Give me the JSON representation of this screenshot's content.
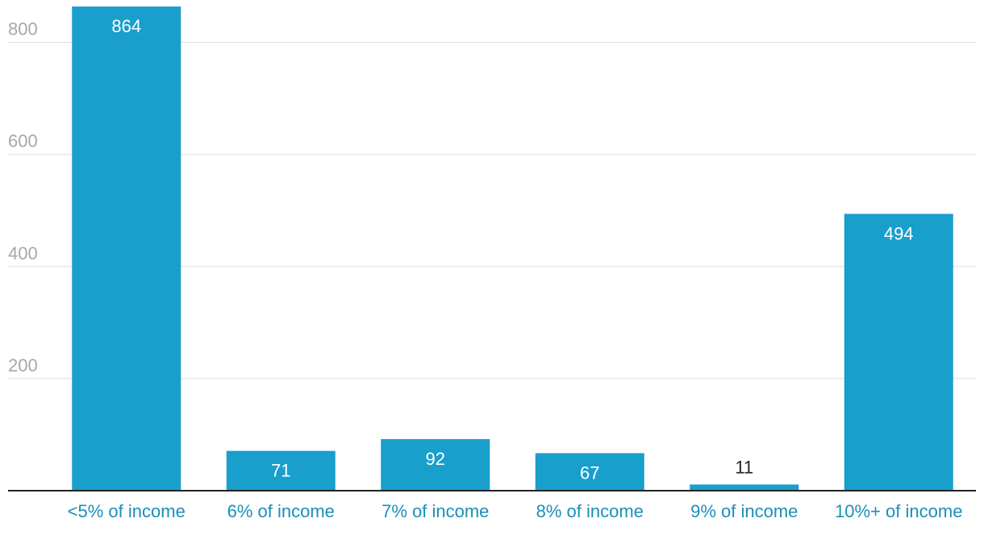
{
  "chart_data": {
    "type": "bar",
    "categories": [
      "<5% of income",
      "6% of income",
      "7% of income",
      "8% of income",
      "9% of income",
      "10%+ of income"
    ],
    "values": [
      864,
      71,
      92,
      67,
      11,
      494
    ],
    "data_labels": [
      "864",
      "71",
      "92",
      "67",
      "11",
      "494"
    ],
    "title": "",
    "xlabel": "",
    "ylabel": "",
    "ylim": [
      0,
      860
    ],
    "yticks": [
      200,
      400,
      600,
      800
    ],
    "ytick_labels": [
      "200",
      "400",
      "600",
      "800"
    ],
    "grid": true,
    "legend": "none",
    "colors": {
      "bar": "#189fcc",
      "category_text": "#1a8fb9",
      "tick_text": "#a8a8a8",
      "gridline": "#dddddd",
      "baseline": "#222222"
    }
  }
}
